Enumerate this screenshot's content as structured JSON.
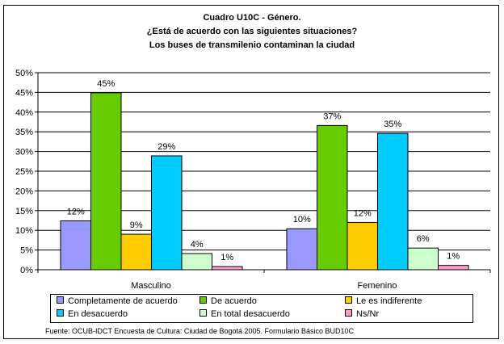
{
  "title_lines": [
    "Cuadro U10C - Género.",
    "¿Está de acuerdo con las siguientes situaciones?",
    "Los buses de transmilenio contaminan la ciudad"
  ],
  "source": "Fuente: OCUB-IDCT Encuesta de Cultura: Ciudad de Bogotá 2005. Formulario Básico BUD10C",
  "chart_data": {
    "type": "bar",
    "title": "Cuadro U10C - Género. ¿Está de acuerdo con las siguientes situaciones? Los buses de transmilenio contaminan la ciudad",
    "categories": [
      "Masculino",
      "Femenino"
    ],
    "ylim": [
      0,
      50
    ],
    "yticks": [
      "0%",
      "5%",
      "10%",
      "15%",
      "20%",
      "25%",
      "30%",
      "35%",
      "40%",
      "45%",
      "50%"
    ],
    "grid": true,
    "legend_position": "bottom",
    "series": [
      {
        "name": "Completamente de acuerdo",
        "color": "#9999FF",
        "values": [
          12.4,
          10.4
        ],
        "labels": [
          "12%",
          "10%"
        ]
      },
      {
        "name": "De acuerdo",
        "color": "#66CC00",
        "values": [
          44.9,
          36.6
        ],
        "labels": [
          "45%",
          "37%"
        ]
      },
      {
        "name": "Le es indiferente",
        "color": "#FFCC00",
        "values": [
          9.0,
          12.0
        ],
        "labels": [
          "9%",
          "12%"
        ]
      },
      {
        "name": "En desacuerdo",
        "color": "#00CCFF",
        "values": [
          28.9,
          34.6
        ],
        "labels": [
          "29%",
          "35%"
        ]
      },
      {
        "name": "En total desacuerdo",
        "color": "#CCFFCC",
        "values": [
          4.1,
          5.5
        ],
        "labels": [
          "4%",
          "6%"
        ]
      },
      {
        "name": "Ns/Nr",
        "color": "#FF99CC",
        "values": [
          0.8,
          1.1
        ],
        "labels": [
          "1%",
          "1%"
        ]
      }
    ]
  }
}
